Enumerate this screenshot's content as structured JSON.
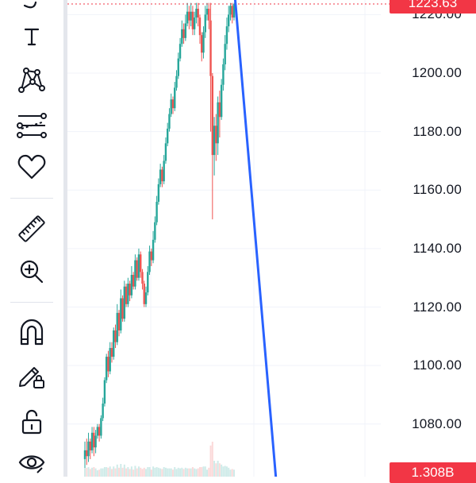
{
  "toolbar": {
    "tools": [
      {
        "name": "text-tool",
        "icon": "text-icon"
      },
      {
        "name": "patterns-tool",
        "icon": "xabcd-pattern-icon"
      },
      {
        "name": "prediction-tool",
        "icon": "forecast-icon"
      },
      {
        "name": "favorites-tool",
        "icon": "heart-icon"
      },
      {
        "name": "measure-tool",
        "icon": "ruler-icon"
      },
      {
        "name": "zoom-in-tool",
        "icon": "zoom-in-icon"
      },
      {
        "name": "magnet-tool",
        "icon": "magnet-icon"
      },
      {
        "name": "lock-drawings-tool",
        "icon": "pencil-lock-icon"
      },
      {
        "name": "lock-all-tool",
        "icon": "unlock-icon"
      },
      {
        "name": "hide-tool",
        "icon": "eye-icon"
      }
    ]
  },
  "price_axis": {
    "ticks": [
      "1220.00",
      "1200.00",
      "1180.00",
      "1160.00",
      "1140.00",
      "1120.00",
      "1100.00",
      "1080.00"
    ],
    "last_price_label": "1223.63",
    "volume_label": "1.308B"
  },
  "colors": {
    "up": "#26a69a",
    "down": "#ef5350",
    "trendline": "#2962ff",
    "price_tag": "#f23645",
    "grid": "#f0f3fa"
  },
  "chart_data": {
    "type": "candlestick",
    "ylim": [
      1062,
      1225
    ],
    "last_price": 1223.63,
    "y_ticks": [
      1080,
      1100,
      1120,
      1140,
      1160,
      1180,
      1200,
      1220
    ],
    "trendline": {
      "start": [
        0.41,
        1226
      ],
      "end": [
        0.51,
        1062
      ]
    },
    "candles": [
      [
        1068,
        1071,
        1065,
        1074
      ],
      [
        1071,
        1069,
        1066,
        1075
      ],
      [
        1069,
        1074,
        1067,
        1077
      ],
      [
        1074,
        1071,
        1068,
        1075
      ],
      [
        1071,
        1077,
        1070,
        1079
      ],
      [
        1077,
        1072,
        1069,
        1079
      ],
      [
        1072,
        1076,
        1070,
        1078
      ],
      [
        1076,
        1079,
        1075,
        1080
      ],
      [
        1079,
        1076,
        1074,
        1080
      ],
      [
        1076,
        1082,
        1075,
        1083
      ],
      [
        1082,
        1087,
        1081,
        1089
      ],
      [
        1087,
        1095,
        1086,
        1096
      ],
      [
        1095,
        1103,
        1094,
        1104
      ],
      [
        1103,
        1098,
        1096,
        1105
      ],
      [
        1098,
        1106,
        1097,
        1108
      ],
      [
        1106,
        1103,
        1101,
        1108
      ],
      [
        1103,
        1112,
        1102,
        1113
      ],
      [
        1112,
        1108,
        1106,
        1114
      ],
      [
        1108,
        1118,
        1107,
        1121
      ],
      [
        1118,
        1112,
        1110,
        1119
      ],
      [
        1112,
        1123,
        1111,
        1126
      ],
      [
        1123,
        1116,
        1115,
        1124
      ],
      [
        1116,
        1127,
        1115,
        1129
      ],
      [
        1127,
        1121,
        1120,
        1128
      ],
      [
        1121,
        1128,
        1120,
        1130
      ],
      [
        1128,
        1124,
        1122,
        1129
      ],
      [
        1124,
        1131,
        1123,
        1134
      ],
      [
        1131,
        1127,
        1126,
        1132
      ],
      [
        1127,
        1136,
        1126,
        1138
      ],
      [
        1136,
        1130,
        1129,
        1137
      ],
      [
        1130,
        1138,
        1129,
        1140
      ],
      [
        1138,
        1132,
        1130,
        1139
      ],
      [
        1132,
        1128,
        1126,
        1133
      ],
      [
        1128,
        1121,
        1120,
        1129
      ],
      [
        1121,
        1125,
        1120,
        1127
      ],
      [
        1125,
        1132,
        1124,
        1134
      ],
      [
        1132,
        1139,
        1131,
        1141
      ],
      [
        1139,
        1136,
        1134,
        1140
      ],
      [
        1136,
        1143,
        1135,
        1146
      ],
      [
        1143,
        1149,
        1142,
        1151
      ],
      [
        1149,
        1156,
        1148,
        1158
      ],
      [
        1156,
        1162,
        1155,
        1164
      ],
      [
        1162,
        1167,
        1161,
        1169
      ],
      [
        1167,
        1163,
        1161,
        1168
      ],
      [
        1163,
        1170,
        1162,
        1172
      ],
      [
        1170,
        1176,
        1169,
        1178
      ],
      [
        1176,
        1181,
        1175,
        1183
      ],
      [
        1181,
        1186,
        1180,
        1188
      ],
      [
        1186,
        1191,
        1185,
        1193
      ],
      [
        1191,
        1188,
        1186,
        1192
      ],
      [
        1188,
        1195,
        1187,
        1197
      ],
      [
        1195,
        1199,
        1194,
        1201
      ],
      [
        1199,
        1205,
        1198,
        1207
      ],
      [
        1205,
        1210,
        1204,
        1212
      ],
      [
        1210,
        1215,
        1209,
        1218
      ],
      [
        1215,
        1212,
        1210,
        1217
      ],
      [
        1212,
        1217,
        1211,
        1220
      ],
      [
        1217,
        1221,
        1216,
        1224
      ],
      [
        1221,
        1218,
        1215,
        1223
      ],
      [
        1218,
        1221,
        1216,
        1224
      ],
      [
        1221,
        1215,
        1213,
        1223
      ],
      [
        1215,
        1219,
        1213,
        1221
      ],
      [
        1219,
        1222,
        1217,
        1224
      ],
      [
        1222,
        1219,
        1216,
        1224
      ],
      [
        1219,
        1213,
        1210,
        1220
      ],
      [
        1213,
        1207,
        1204,
        1214
      ],
      [
        1207,
        1214,
        1205,
        1216
      ],
      [
        1214,
        1220,
        1212,
        1223
      ],
      [
        1220,
        1222,
        1218,
        1224
      ],
      [
        1222,
        1218,
        1215,
        1224
      ],
      [
        1218,
        1199,
        1180,
        1224
      ],
      [
        1199,
        1172,
        1150,
        1200
      ],
      [
        1172,
        1182,
        1165,
        1185
      ],
      [
        1182,
        1176,
        1170,
        1186
      ],
      [
        1176,
        1190,
        1172,
        1192
      ],
      [
        1190,
        1185,
        1178,
        1194
      ],
      [
        1185,
        1196,
        1184,
        1198
      ],
      [
        1196,
        1203,
        1194,
        1205
      ],
      [
        1203,
        1210,
        1201,
        1213
      ],
      [
        1210,
        1216,
        1208,
        1219
      ],
      [
        1216,
        1220,
        1214,
        1223
      ],
      [
        1220,
        1223,
        1218,
        1224
      ],
      [
        1223,
        1219,
        1217,
        1224
      ],
      [
        1219,
        1223.63,
        1218,
        1224
      ]
    ]
  }
}
